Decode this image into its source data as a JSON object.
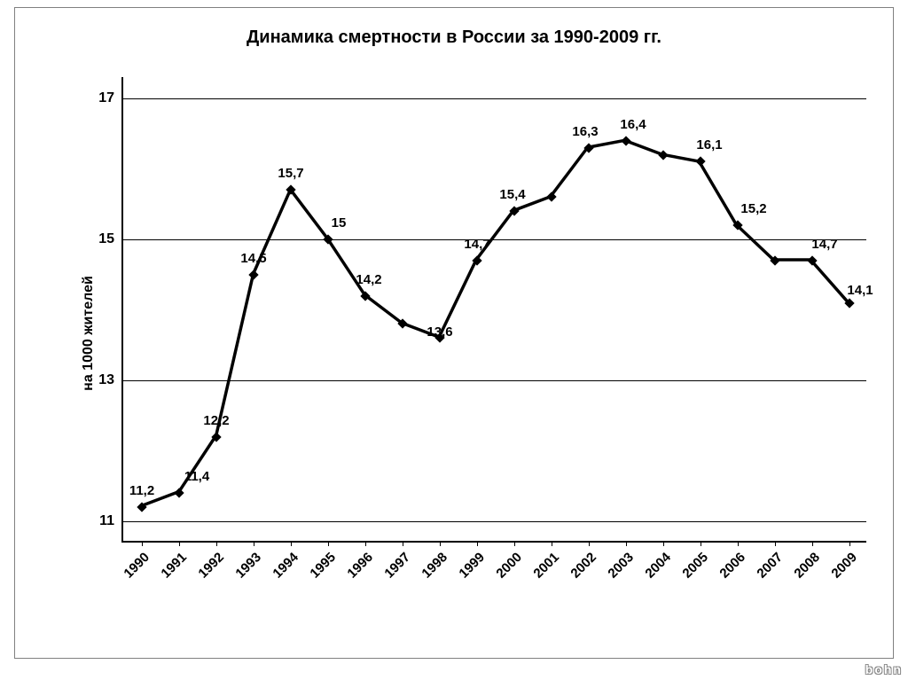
{
  "chart": {
    "type": "line",
    "title": "Динамика смертности в России за 1990-2009 гг.",
    "ylabel": "на 1000 жителей",
    "watermark": "bohn",
    "background_color": "#ffffff",
    "border_color": "#808080",
    "axis_color": "#000000",
    "grid_color": "#000000",
    "text_color": "#000000",
    "title_fontsize": 20,
    "label_fontsize": 16,
    "tick_fontsize": 16,
    "xtick_fontsize": 15,
    "point_label_fontsize": 15,
    "yaxis": {
      "min": 10.7,
      "max": 17.3,
      "ticks": [
        11,
        13,
        15,
        17
      ]
    },
    "xaxis": {
      "categories": [
        "1990",
        "1991",
        "1992",
        "1993",
        "1994",
        "1995",
        "1996",
        "1997",
        "1998",
        "1999",
        "2000",
        "2001",
        "2002",
        "2003",
        "2004",
        "2005",
        "2006",
        "2007",
        "2008",
        "2009"
      ],
      "rotation_deg": -45
    },
    "series": {
      "color": "#000000",
      "line_width": 3.5,
      "marker_size": 8,
      "marker_shape": "diamond",
      "values": [
        11.2,
        11.4,
        12.2,
        14.5,
        15.7,
        15.0,
        14.2,
        13.8,
        13.6,
        14.7,
        15.4,
        15.6,
        16.3,
        16.4,
        16.2,
        16.1,
        15.2,
        14.7,
        14.7,
        14.1
      ],
      "labels": [
        "11,2",
        "11,4",
        "12,2",
        "14,5",
        "15,7",
        "15",
        "14,2",
        "",
        "13,6",
        "14,7",
        "15,4",
        "",
        "16,3",
        "16,4",
        "",
        "16,1",
        "15,2",
        "",
        "14,7",
        "14,1"
      ],
      "label_dx": [
        0,
        20,
        0,
        0,
        0,
        12,
        4,
        0,
        0,
        0,
        -2,
        0,
        -4,
        8,
        0,
        10,
        18,
        0,
        14,
        12
      ],
      "label_dy": [
        0,
        0,
        0,
        0,
        0,
        0,
        0,
        0,
        12,
        0,
        0,
        0,
        0,
        0,
        0,
        0,
        0,
        0,
        0,
        4
      ]
    }
  }
}
